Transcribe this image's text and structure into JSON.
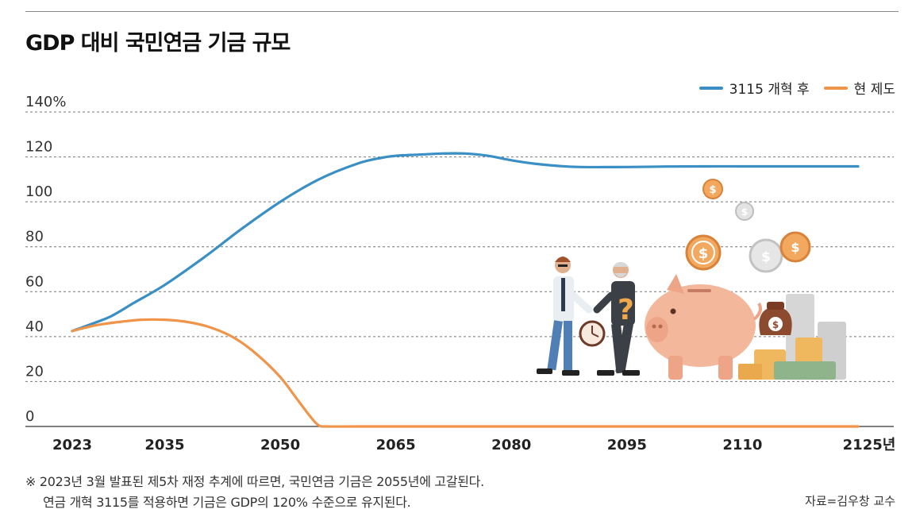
{
  "title": "GDP 대비 국민연금 기금 규모",
  "legend": [
    {
      "label": "3115 개혁 후",
      "color": "#3a8fc4"
    },
    {
      "label": "현 제도",
      "color": "#f0944a"
    }
  ],
  "note": {
    "line1": "※ 2023년 3월 발표된 제5차 재정 추계에 따르면, 국민연금 기금은 2055년에 고갈된다.",
    "line2": "연금 개혁 3115를 적용하면 기금은 GDP의 120% 수준으로 유지된다."
  },
  "source": "자료=김우창 교수",
  "illustration_icon": "pension-savings-illustration-icon",
  "chart_data": {
    "type": "line",
    "title": "GDP 대비 국민연금 기금 규모",
    "xlabel": "",
    "ylabel": "",
    "x_ticks": [
      2023,
      2035,
      2050,
      2065,
      2080,
      2095,
      2110,
      2125
    ],
    "x_tick_labels": [
      "2023",
      "2035",
      "2050",
      "2065",
      "2080",
      "2095",
      "2110",
      "2125년"
    ],
    "xlim": [
      2023,
      2125
    ],
    "y_ticks": [
      0,
      20,
      40,
      60,
      80,
      100,
      120,
      140
    ],
    "y_tick_labels": [
      "0",
      "20",
      "40",
      "60",
      "80",
      "100",
      "120",
      "140%"
    ],
    "ylim": [
      0,
      140
    ],
    "grid": "horizontal dashed",
    "legend_position": "top-right",
    "series": [
      {
        "name": "3115 개혁 후",
        "color": "#3a8fc4",
        "x": [
          2023,
          2025,
          2028,
          2031,
          2035,
          2040,
          2045,
          2050,
          2055,
          2060,
          2063,
          2065,
          2068,
          2071,
          2074,
          2077,
          2080,
          2083,
          2086,
          2089,
          2095,
          2100,
          2105,
          2110,
          2115,
          2120,
          2125
        ],
        "values": [
          42.5,
          45,
          49,
          55,
          63,
          75,
          88,
          100,
          110,
          117,
          119.5,
          120.5,
          121,
          121.5,
          121.5,
          120.5,
          118.5,
          117,
          116,
          115.5,
          115.5,
          115.7,
          115.8,
          115.8,
          115.8,
          115.8,
          115.8
        ]
      },
      {
        "name": "현 제도",
        "color": "#f0944a",
        "x": [
          2023,
          2026,
          2029,
          2032,
          2035,
          2038,
          2041,
          2044,
          2047,
          2050,
          2052,
          2054,
          2055,
          2056,
          2060,
          2070,
          2080,
          2090,
          2100,
          2110,
          2125
        ],
        "values": [
          42.5,
          45,
          46.5,
          47.5,
          47.5,
          46.5,
          44,
          39.5,
          32,
          22,
          13,
          4,
          0.5,
          0,
          0,
          0,
          0,
          0,
          0,
          0,
          0
        ]
      }
    ]
  }
}
